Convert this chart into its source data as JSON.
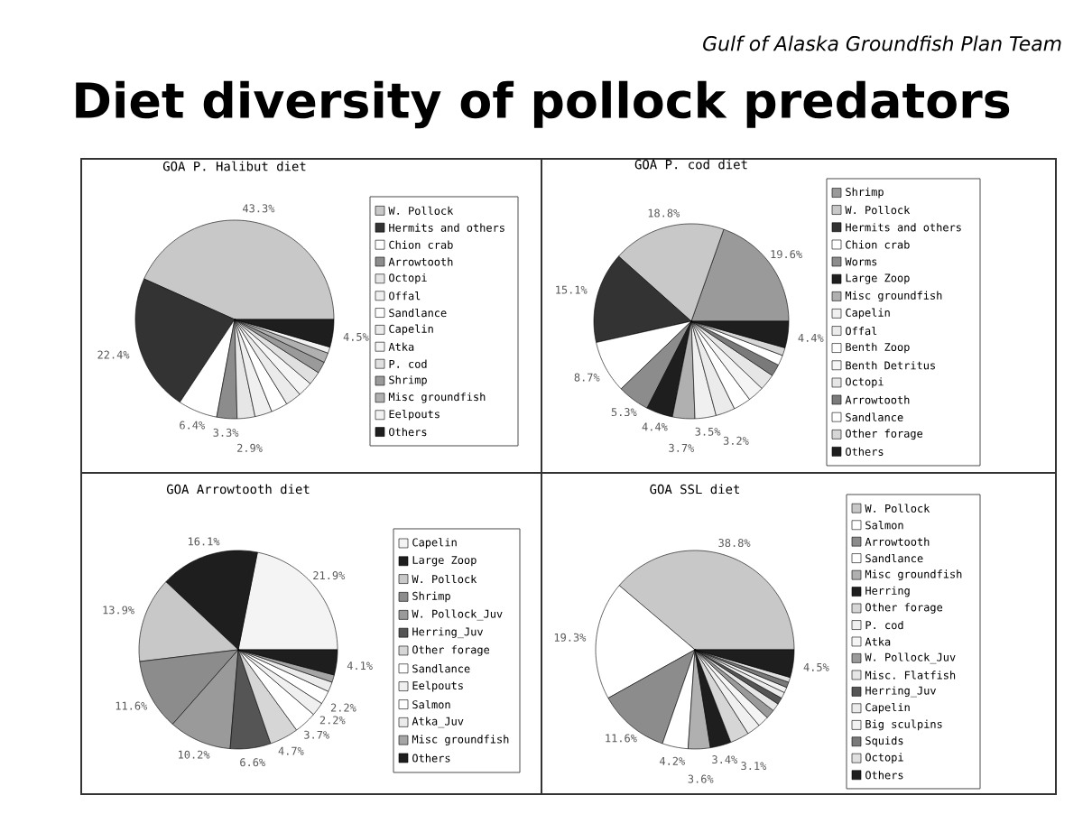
{
  "chart_data": [
    {
      "type": "other",
      "title": "Diet diversity of pollock predators",
      "annotations": [
        "Gulf of Alaska Groundfish Plan Team"
      ]
    },
    {
      "type": "pie",
      "title": "GOA P. Halibut diet",
      "legend": "right",
      "categories": [
        "W. Pollock",
        "Hermits and others",
        "Chion crab",
        "Arrowtooth",
        "Octopi",
        "Offal",
        "Sandlance",
        "Capelin",
        "Atka",
        "P. cod",
        "Shrimp",
        "Misc groundfish",
        "Eelpouts",
        "Others"
      ],
      "values": [
        43.3,
        22.4,
        6.4,
        3.3,
        2.9,
        2.8,
        2.7,
        2.6,
        2.4,
        2.2,
        1.9,
        1.6,
        1.0,
        4.5
      ],
      "value_labels": [
        "43.3%",
        "22.4%",
        "6.4%",
        "3.3%",
        "2.9%",
        null,
        null,
        null,
        null,
        null,
        null,
        null,
        null,
        "4.5%"
      ],
      "colors": [
        "#c8c8c8",
        "#333333",
        "#ffffff",
        "#8c8c8c",
        "#e6e6e6",
        "#f0f0f0",
        "#ffffff",
        "#ebebeb",
        "#f5f5f5",
        "#e0e0e0",
        "#9a9a9a",
        "#b0b0b0",
        "#f2f2f2",
        "#1e1e1e"
      ]
    },
    {
      "type": "pie",
      "title": "GOA P. cod diet",
      "legend": "right",
      "categories": [
        "Shrimp",
        "W. Pollock",
        "Hermits and others",
        "Chion crab",
        "Worms",
        "Large Zoop",
        "Misc groundfish",
        "Capelin",
        "Offal",
        "Benth Zoop",
        "Benth Detritus",
        "Octopi",
        "Arrowtooth",
        "Sandlance",
        "Other forage",
        "Others"
      ],
      "values": [
        19.6,
        18.8,
        15.1,
        8.7,
        5.3,
        4.4,
        3.7,
        3.5,
        3.2,
        2.9,
        2.7,
        2.7,
        2.0,
        1.7,
        1.3,
        4.4
      ],
      "value_labels": [
        "19.6%",
        "18.8%",
        "15.1%",
        "8.7%",
        "5.3%",
        "4.4%",
        "3.7%",
        "3.5%",
        "3.2%",
        null,
        null,
        null,
        null,
        null,
        null,
        "4.4%"
      ],
      "colors": [
        "#9a9a9a",
        "#c8c8c8",
        "#333333",
        "#ffffff",
        "#8c8c8c",
        "#1e1e1e",
        "#b0b0b0",
        "#f0f0f0",
        "#ebebeb",
        "#ffffff",
        "#f5f5f5",
        "#e6e6e6",
        "#7a7a7a",
        "#ffffff",
        "#d6d6d6",
        "#1e1e1e"
      ]
    },
    {
      "type": "pie",
      "title": "GOA Arrowtooth diet",
      "legend": "right",
      "categories": [
        "Capelin",
        "Large Zoop",
        "W. Pollock",
        "Shrimp",
        "W. Pollock_Juv",
        "Herring_Juv",
        "Other forage",
        "Sandlance",
        "Eelpouts",
        "Salmon",
        "Atka_Juv",
        "Misc groundfish",
        "Others"
      ],
      "values": [
        21.9,
        16.1,
        13.9,
        11.6,
        10.2,
        6.6,
        4.7,
        3.7,
        2.2,
        2.2,
        1.6,
        1.2,
        4.1
      ],
      "value_labels": [
        "21.9%",
        "16.1%",
        "13.9%",
        "11.6%",
        "10.2%",
        "6.6%",
        "4.7%",
        "3.7%",
        "2.2%",
        "2.2%",
        null,
        null,
        "4.1%"
      ],
      "colors": [
        "#f4f4f4",
        "#1e1e1e",
        "#c8c8c8",
        "#8c8c8c",
        "#9a9a9a",
        "#555555",
        "#d6d6d6",
        "#ffffff",
        "#f0f0f0",
        "#ffffff",
        "#ebebeb",
        "#a5a5a5",
        "#1e1e1e"
      ]
    },
    {
      "type": "pie",
      "title": "GOA SSL diet",
      "legend": "right",
      "categories": [
        "W. Pollock",
        "Salmon",
        "Arrowtooth",
        "Sandlance",
        "Misc groundfish",
        "Herring",
        "Other forage",
        "P. cod",
        "Atka",
        "W. Pollock_Juv",
        "Misc. Flatfish",
        "Herring_Juv",
        "Capelin",
        "Big sculpins",
        "Squids",
        "Octopi",
        "Others"
      ],
      "values": [
        38.8,
        19.3,
        11.6,
        4.2,
        3.6,
        3.4,
        3.1,
        2.2,
        1.8,
        1.5,
        1.3,
        1.1,
        1.0,
        0.9,
        0.9,
        0.8,
        4.5
      ],
      "value_labels": [
        "38.8%",
        "19.3%",
        "11.6%",
        "4.2%",
        "3.6%",
        "3.4%",
        "3.1%",
        null,
        null,
        null,
        null,
        null,
        null,
        null,
        null,
        null,
        "4.5%"
      ],
      "colors": [
        "#c8c8c8",
        "#ffffff",
        "#8c8c8c",
        "#ffffff",
        "#b0b0b0",
        "#1e1e1e",
        "#d6d6d6",
        "#f0f0f0",
        "#f5f5f5",
        "#9a9a9a",
        "#e6e6e6",
        "#555555",
        "#ebebeb",
        "#f2f2f2",
        "#7a7a7a",
        "#e0e0e0",
        "#1e1e1e"
      ]
    }
  ]
}
